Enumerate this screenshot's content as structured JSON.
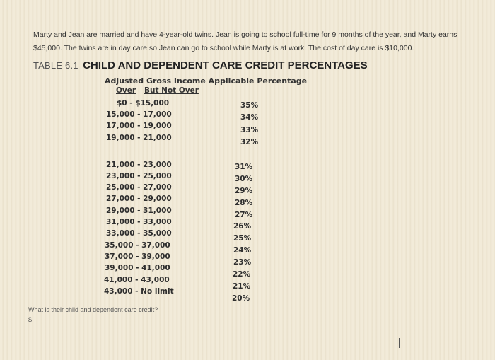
{
  "problem": {
    "line1": "Marty and Jean are married and have 4-year-old twins. Jean is going to school full-time for 9 months of the year, and Marty earns",
    "line2": "$45,000. The twins are in day care so Jean can go to school while Marty is at work. The cost of day care is $10,000."
  },
  "table": {
    "label": "TABLE 6.1",
    "name": "CHILD AND DEPENDENT CARE CREDIT PERCENTAGES",
    "header": "Adjusted Gross Income Applicable Percentage",
    "col_over": "Over",
    "col_but_not_over": "But Not Over",
    "rows": [
      {
        "range": "$0  -  $15,000",
        "pct": "35%"
      },
      {
        "range": "15,000  -  17,000",
        "pct": "34%"
      },
      {
        "range": "17,000  -  19,000",
        "pct": "33%"
      },
      {
        "range": "19,000  -  21,000",
        "pct": "32%"
      },
      {
        "range": "21,000  -  23,000",
        "pct": "31%"
      },
      {
        "range": "23,000  -  25,000",
        "pct": "30%"
      },
      {
        "range": "25,000  -  27,000",
        "pct": "29%"
      },
      {
        "range": "27,000  -  29,000",
        "pct": "28%"
      },
      {
        "range": "29,000  -  31,000",
        "pct": "27%"
      },
      {
        "range": "31,000  -  33,000",
        "pct": "26%"
      },
      {
        "range": "33,000  -  35,000",
        "pct": "25%"
      },
      {
        "range": "35,000  -  37,000",
        "pct": "24%"
      },
      {
        "range": "37,000  -  39,000",
        "pct": "23%"
      },
      {
        "range": "39,000  -  41,000",
        "pct": "22%"
      },
      {
        "range": "41,000  -  43,000",
        "pct": "21%"
      },
      {
        "range": "43,000  -  No limit",
        "pct": "20%"
      }
    ]
  },
  "question": "What is their child and dependent care credit?",
  "answer_prefix": "$"
}
